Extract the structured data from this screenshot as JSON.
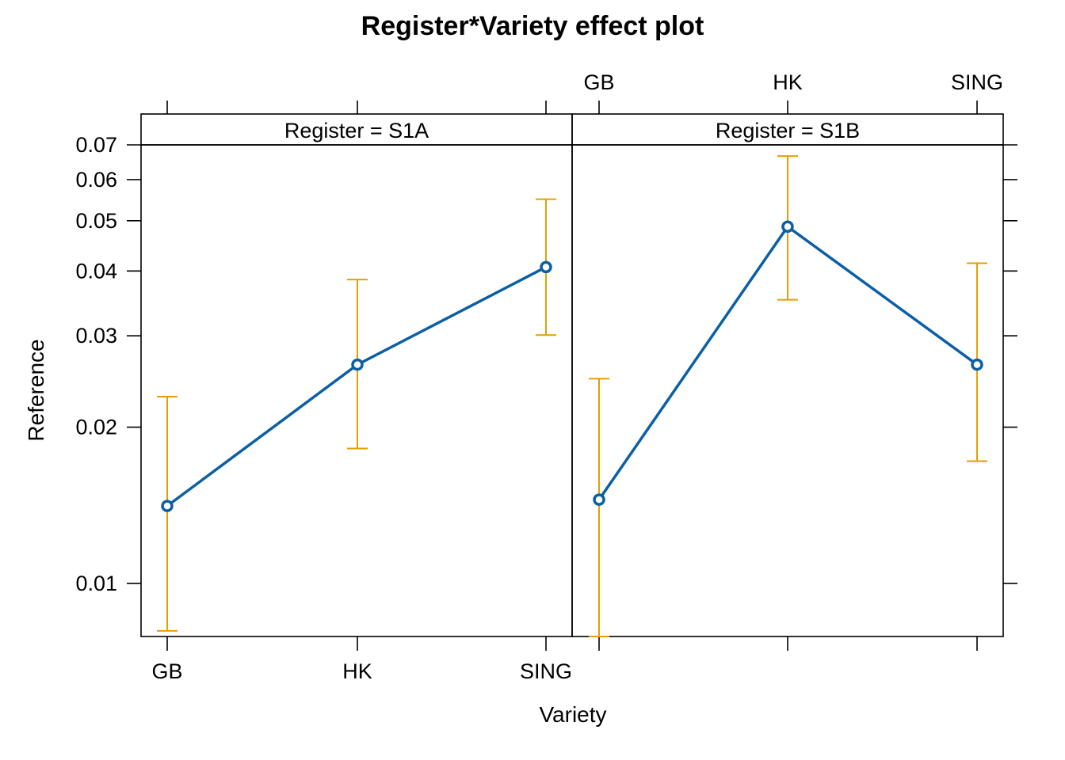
{
  "chart_data": {
    "type": "line",
    "title": "Register*Variety effect plot",
    "xlabel": "Variety",
    "ylabel": "Reference",
    "y_scale": "log",
    "ylim": [
      0.0079,
      0.07
    ],
    "yticks": [
      0.01,
      0.02,
      0.03,
      0.04,
      0.05,
      0.06,
      0.07
    ],
    "ytick_labels": [
      "0.01",
      "0.02",
      "0.03",
      "0.04",
      "0.05",
      "0.06",
      "0.07"
    ],
    "categories": [
      "GB",
      "HK",
      "SING"
    ],
    "grid": false,
    "colors": {
      "line": "#0b5fa5",
      "error_bar": "#e69f00",
      "strip": "#f0f0f0"
    },
    "panels": [
      {
        "strip_label": "Register = S1A",
        "values": [
          0.0141,
          0.0264,
          0.0407
        ],
        "lower": [
          0.0081,
          0.0182,
          0.0301
        ],
        "upper": [
          0.0229,
          0.0385,
          0.055
        ]
      },
      {
        "strip_label": "Register = S1B",
        "values": [
          0.0145,
          0.0487,
          0.0264
        ],
        "lower": [
          0.0079,
          0.0352,
          0.0172
        ],
        "upper": [
          0.0248,
          0.0666,
          0.0414
        ]
      }
    ]
  }
}
